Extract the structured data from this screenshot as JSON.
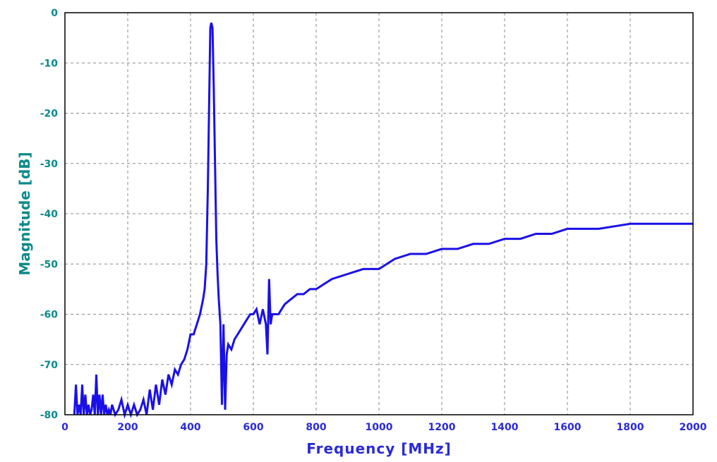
{
  "chart_data": {
    "type": "line",
    "title": "",
    "xlabel": "Frequency [MHz]",
    "ylabel": "Magnitude [dB]",
    "xlim": [
      0,
      2000
    ],
    "ylim": [
      -80,
      0
    ],
    "x_ticks": [
      "0",
      "200",
      "400",
      "600",
      "800",
      "1000",
      "1200",
      "1400",
      "1600",
      "1800",
      "2000"
    ],
    "y_ticks": [
      "0",
      "-10",
      "-20",
      "-30",
      "-40",
      "-50",
      "-60",
      "-70",
      "-80"
    ],
    "grid": true,
    "line_color": "#1a10e8",
    "series": [
      {
        "x": [
          30,
          35,
          40,
          45,
          50,
          55,
          60,
          65,
          70,
          75,
          80,
          85,
          90,
          95,
          100,
          105,
          110,
          115,
          120,
          125,
          130,
          135,
          140,
          145,
          150,
          160,
          170,
          180,
          190,
          200,
          210,
          220,
          230,
          240,
          250,
          260,
          270,
          280,
          290,
          300,
          310,
          320,
          330,
          340,
          350,
          360,
          370,
          380,
          390,
          400,
          410,
          420,
          430,
          440,
          445,
          450,
          455,
          460,
          463,
          466,
          470,
          474,
          478,
          482,
          486,
          490,
          495,
          500,
          505,
          510,
          515,
          520,
          530,
          540,
          550,
          560,
          570,
          580,
          590,
          600,
          610,
          620,
          630,
          640,
          645,
          650,
          655,
          660,
          670,
          680,
          690,
          700,
          720,
          740,
          760,
          780,
          800,
          850,
          900,
          950,
          1000,
          1050,
          1100,
          1150,
          1200,
          1250,
          1300,
          1350,
          1400,
          1450,
          1500,
          1550,
          1600,
          1650,
          1700,
          1750,
          1800,
          1850,
          1900,
          1950,
          2000
        ],
        "y": [
          -80,
          -74,
          -80,
          -78,
          -80,
          -74,
          -80,
          -76,
          -80,
          -78,
          -80,
          -79,
          -76,
          -80,
          -72,
          -80,
          -76,
          -80,
          -76,
          -80,
          -78,
          -80,
          -79,
          -80,
          -78,
          -80,
          -79,
          -77,
          -80,
          -78,
          -80,
          -78,
          -80,
          -79,
          -77,
          -80,
          -75,
          -79,
          -74,
          -78,
          -73,
          -76,
          -72,
          -74,
          -71,
          -72,
          -70,
          -69,
          -67,
          -64,
          -64,
          -62,
          -60,
          -57,
          -55,
          -50,
          -35,
          -15,
          -3,
          -2,
          -3,
          -15,
          -30,
          -45,
          -52,
          -57,
          -62,
          -78,
          -62,
          -79,
          -68,
          -66,
          -67,
          -65,
          -64,
          -63,
          -62,
          -61,
          -60,
          -60,
          -59,
          -62,
          -59,
          -62,
          -68,
          -53,
          -62,
          -60,
          -60,
          -60,
          -59,
          -58,
          -57,
          -56,
          -56,
          -55,
          -55,
          -53,
          -52,
          -51,
          -51,
          -49,
          -48,
          -48,
          -47,
          -47,
          -46,
          -46,
          -45,
          -45,
          -44,
          -44,
          -43,
          -43,
          -43,
          -42.5,
          -42,
          -42,
          -42,
          -42,
          -42
        ]
      }
    ]
  }
}
